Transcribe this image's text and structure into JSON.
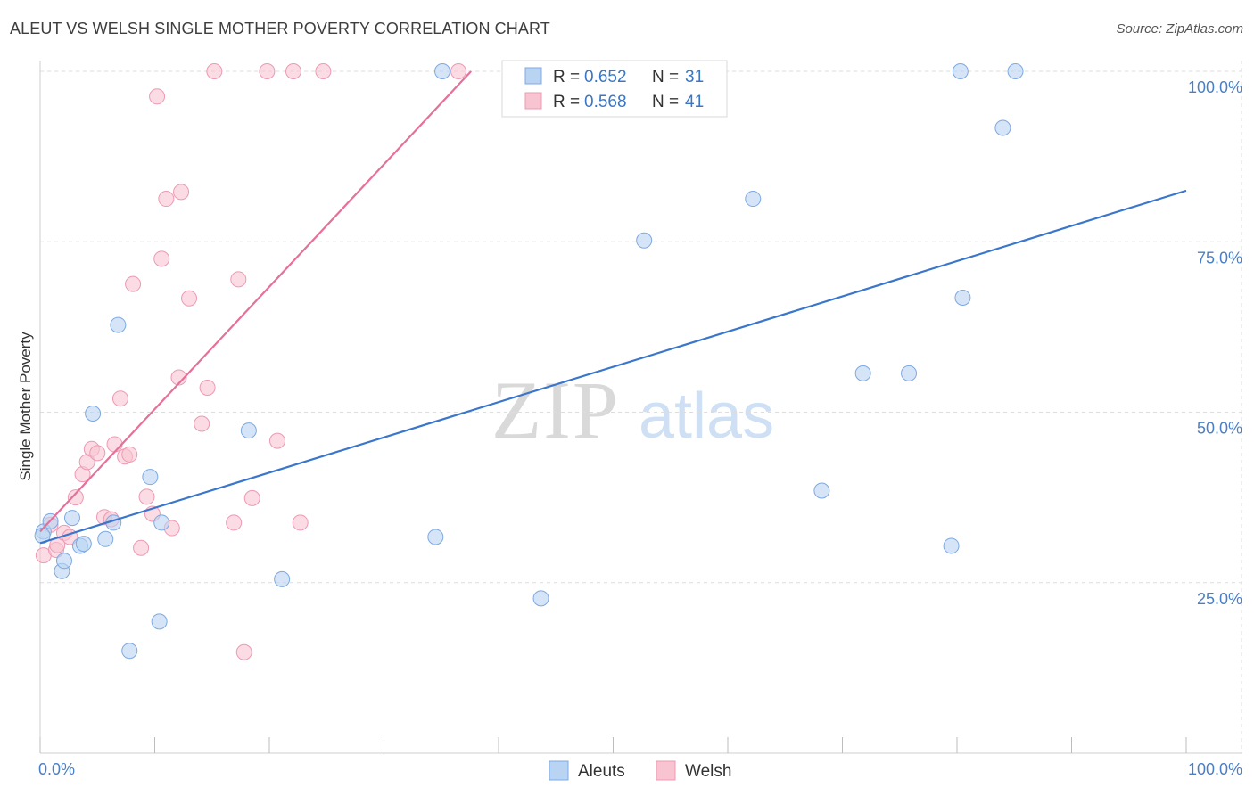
{
  "header": {
    "title": "ALEUT VS WELSH SINGLE MOTHER POVERTY CORRELATION CHART",
    "source": "Source: ZipAtlas.com"
  },
  "watermark": {
    "zip": "ZIP",
    "atlas": "atlas"
  },
  "legend": {
    "r_label": "R =",
    "n_label": "N =",
    "aleuts": {
      "r": "0.652",
      "n": "31"
    },
    "welsh": {
      "r": "0.568",
      "n": "41"
    }
  },
  "bottom_legend": {
    "aleuts": "Aleuts",
    "welsh": "Welsh"
  },
  "colors": {
    "aleuts_fill": "#b9d3f2",
    "aleuts_stroke": "#7ea9e1",
    "aleuts_line": "#3a76cc",
    "welsh_fill": "#f8c4d2",
    "welsh_stroke": "#ec9ab3",
    "welsh_line": "#e5709a",
    "grid": "#dddddd",
    "tick_text": "#4a7fc6"
  },
  "chart_data": {
    "type": "scatter",
    "title": "ALEUT VS WELSH SINGLE MOTHER POVERTY CORRELATION CHART",
    "xlabel": "",
    "ylabel": "Single Mother Poverty",
    "xlim": [
      0,
      100
    ],
    "ylim": [
      0,
      102
    ],
    "x_tick_labels": [
      "0.0%",
      "100.0%"
    ],
    "y_ticks": [
      25,
      50,
      75,
      100
    ],
    "y_tick_labels": [
      "25.0%",
      "50.0%",
      "75.0%",
      "100.0%"
    ],
    "grid": true,
    "legend_placement": "top-center",
    "series": [
      {
        "name": "Aleuts",
        "points": [
          [
            0.3,
            32.5
          ],
          [
            0.9,
            34.0
          ],
          [
            1.9,
            26.7
          ],
          [
            2.1,
            28.2
          ],
          [
            2.8,
            34.5
          ],
          [
            3.5,
            30.4
          ],
          [
            3.8,
            30.7
          ],
          [
            4.6,
            49.8
          ],
          [
            5.7,
            31.4
          ],
          [
            6.4,
            33.8
          ],
          [
            6.8,
            62.8
          ],
          [
            7.8,
            15.0
          ],
          [
            9.6,
            40.5
          ],
          [
            10.4,
            19.3
          ],
          [
            10.6,
            33.8
          ],
          [
            18.2,
            47.3
          ],
          [
            21.1,
            25.5
          ],
          [
            34.5,
            31.7
          ],
          [
            35.1,
            100.0
          ],
          [
            43.7,
            22.7
          ],
          [
            52.7,
            75.2
          ],
          [
            62.2,
            81.3
          ],
          [
            68.2,
            38.5
          ],
          [
            71.8,
            55.7
          ],
          [
            75.8,
            55.7
          ],
          [
            79.5,
            30.4
          ],
          [
            80.3,
            100.0
          ],
          [
            80.5,
            66.8
          ],
          [
            84.0,
            91.7
          ],
          [
            85.1,
            100.0
          ],
          [
            0.2,
            31.9
          ]
        ],
        "trendline": [
          [
            0,
            30.8
          ],
          [
            100,
            82.5
          ]
        ]
      },
      {
        "name": "Welsh",
        "points": [
          [
            0.3,
            29.0
          ],
          [
            0.9,
            33.5
          ],
          [
            1.4,
            29.8
          ],
          [
            1.5,
            30.5
          ],
          [
            2.1,
            32.3
          ],
          [
            2.6,
            31.7
          ],
          [
            3.1,
            37.5
          ],
          [
            3.7,
            40.9
          ],
          [
            4.1,
            42.7
          ],
          [
            4.5,
            44.6
          ],
          [
            5.0,
            44.0
          ],
          [
            5.6,
            34.6
          ],
          [
            6.2,
            34.3
          ],
          [
            6.5,
            45.3
          ],
          [
            7.0,
            52.0
          ],
          [
            7.4,
            43.5
          ],
          [
            7.8,
            43.8
          ],
          [
            8.8,
            30.1
          ],
          [
            9.3,
            37.6
          ],
          [
            9.8,
            35.1
          ],
          [
            10.2,
            96.3
          ],
          [
            10.6,
            72.5
          ],
          [
            11.0,
            81.3
          ],
          [
            11.5,
            33.0
          ],
          [
            12.1,
            55.1
          ],
          [
            12.3,
            82.3
          ],
          [
            13.0,
            66.7
          ],
          [
            14.1,
            48.3
          ],
          [
            14.6,
            53.6
          ],
          [
            15.2,
            100.0
          ],
          [
            16.9,
            33.8
          ],
          [
            17.3,
            69.5
          ],
          [
            17.8,
            14.8
          ],
          [
            18.5,
            37.4
          ],
          [
            19.8,
            100.0
          ],
          [
            20.7,
            45.8
          ],
          [
            22.1,
            100.0
          ],
          [
            22.7,
            33.8
          ],
          [
            24.7,
            100.0
          ],
          [
            36.5,
            100.0
          ],
          [
            8.1,
            68.8
          ]
        ],
        "trendline": [
          [
            0,
            32.5
          ],
          [
            37.6,
            100.0
          ]
        ]
      }
    ]
  }
}
